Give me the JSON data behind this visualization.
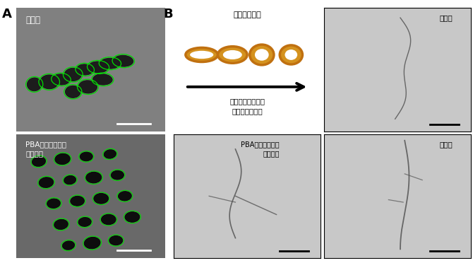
{
  "panel_A_label": "A",
  "panel_B_label": "B",
  "panel_A_top_label": "未処理",
  "panel_A_bottom_label": "PBAリガンド搭載\nナノ粒子",
  "panel_B_title": "褐藻の模式図",
  "panel_B_arrow_text": "成長すると細長い\n細胞が丸くなる",
  "panel_B_top_right_label": "投与前",
  "panel_B_bottom_left_label": "PBAリガンド搭載\nナノ粒子",
  "panel_B_bottom_right_label": "未処理",
  "bg_gray_dark": "#808080",
  "bg_gray_light": "#c8c8c8",
  "bg_white": "#ffffff",
  "algae_fill": "#d4921e",
  "algae_edge": "#c07010",
  "green_edge": "#00dd00",
  "cell_dark": "#111111",
  "white": "#ffffff",
  "black": "#000000"
}
